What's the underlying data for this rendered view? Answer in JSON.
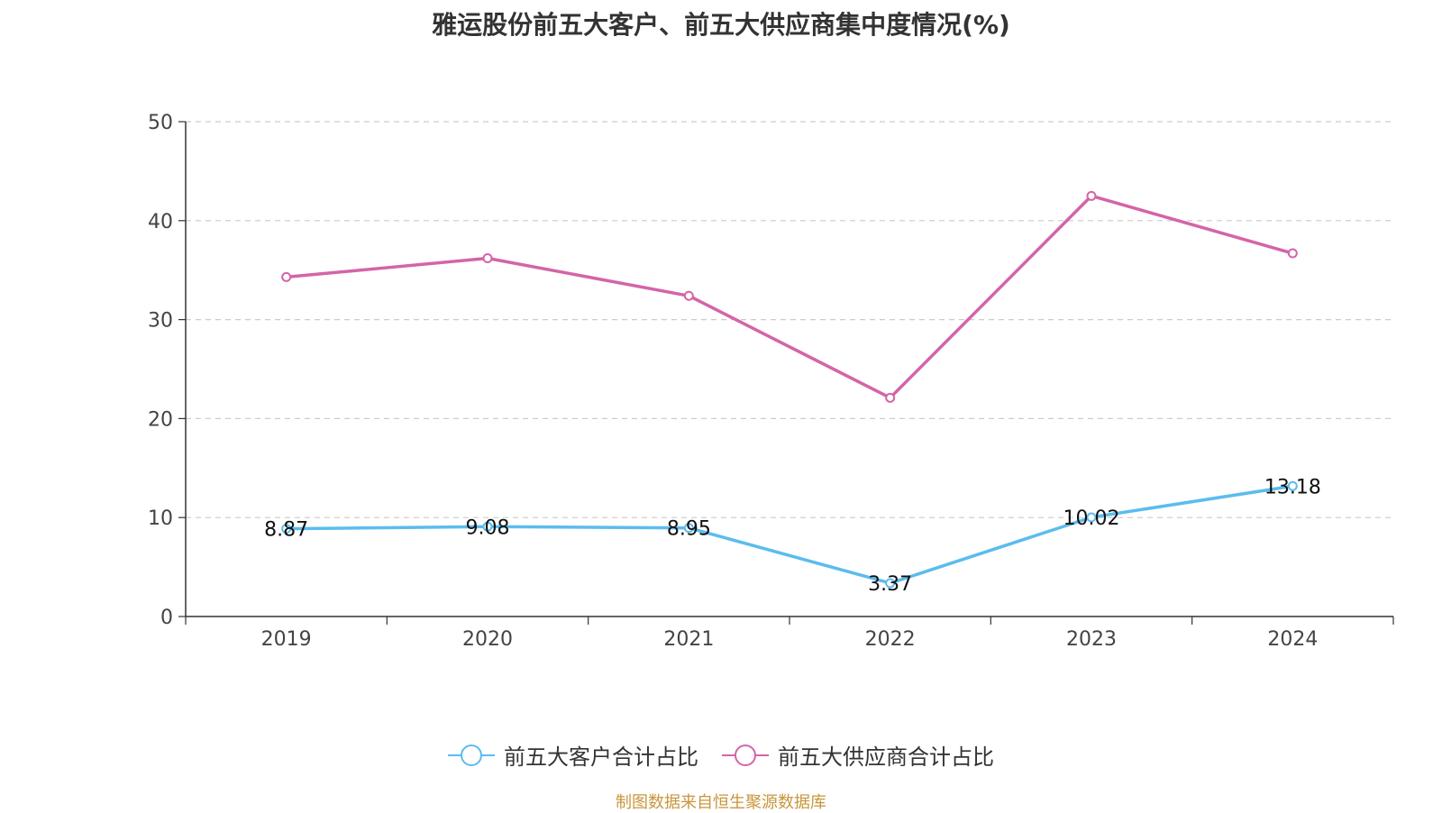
{
  "chart_data": {
    "type": "line",
    "title": "雅运股份前五大客户、前五大供应商集中度情况(%)",
    "categories": [
      "2019",
      "2020",
      "2021",
      "2022",
      "2023",
      "2024"
    ],
    "ylim": [
      0,
      50
    ],
    "yticks": [
      0,
      10,
      20,
      30,
      40,
      50
    ],
    "grid": true,
    "legend_position": "bottom",
    "series": [
      {
        "name": "前五大客户合计占比",
        "color": "#5bbcee",
        "values": [
          8.87,
          9.08,
          8.95,
          3.37,
          10.02,
          13.18
        ],
        "labels": [
          "8.87",
          "9.08",
          "8.95",
          "3.37",
          "10.02",
          "13.18"
        ],
        "show_labels": true
      },
      {
        "name": "前五大供应商合计占比",
        "color": "#d464a8",
        "values": [
          34.3,
          36.2,
          32.4,
          22.1,
          42.5,
          36.7
        ],
        "show_labels": false
      }
    ]
  },
  "source": "制图数据来自恒生聚源数据库"
}
